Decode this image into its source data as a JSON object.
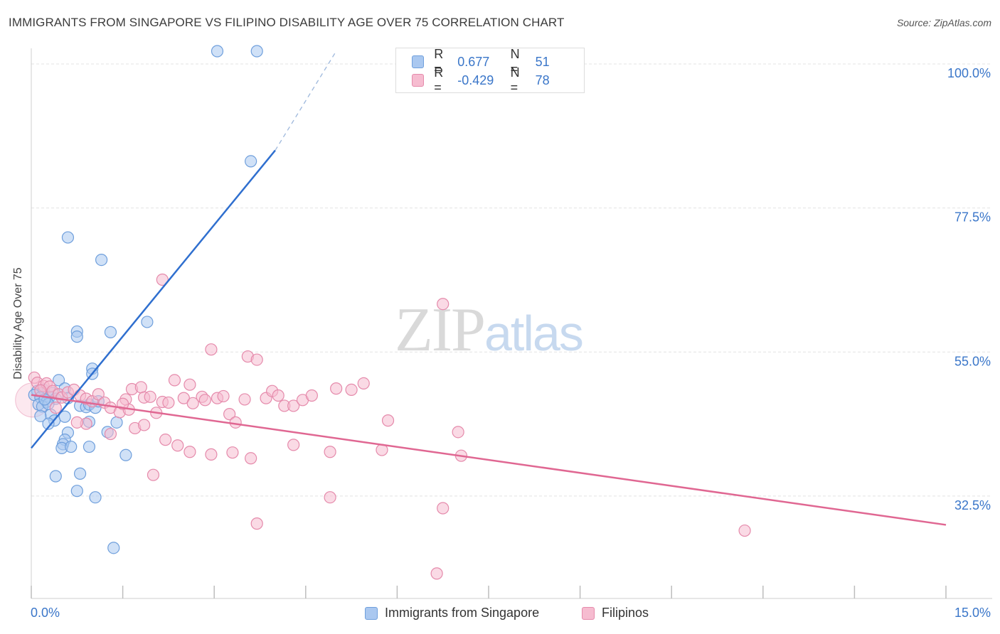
{
  "title": "IMMIGRANTS FROM SINGAPORE VS FILIPINO DISABILITY AGE OVER 75 CORRELATION CHART",
  "source": "Source: ZipAtlas.com",
  "watermark": {
    "part1": "ZIP",
    "part2": "atlas"
  },
  "legend": {
    "rows": [
      {
        "r_label": "R =",
        "r_value": "0.677",
        "n_label": "N =",
        "n_value": "51"
      },
      {
        "r_label": "R =",
        "r_value": "-0.429",
        "n_label": "N =",
        "n_value": "78"
      }
    ]
  },
  "bottom_legend": [
    "Immigrants from Singapore",
    "Filipinos"
  ],
  "colors": {
    "singapore_fill": "#aac8f0",
    "singapore_stroke": "#6f9fdc",
    "singapore_line": "#2f6fcf",
    "filipino_fill": "#f6bcd0",
    "filipino_stroke": "#e58aab",
    "filipino_line": "#e06792",
    "axis_label": "#3a76c9",
    "grid": "#e3e3e3"
  },
  "chart_data": {
    "type": "scatter",
    "title": "IMMIGRANTS FROM SINGAPORE VS FILIPINO DISABILITY AGE OVER 75 CORRELATION CHART",
    "xlabel": "",
    "ylabel": "Disability Age Over 75",
    "xlim": [
      0,
      15
    ],
    "ylim": [
      16.5,
      102
    ],
    "x_tick_labels": [
      "0.0%",
      "15.0%"
    ],
    "y_ticks": [
      32.5,
      55.0,
      77.5,
      100.0
    ],
    "y_tick_labels": [
      "32.5%",
      "55.0%",
      "77.5%",
      "100.0%"
    ],
    "grid": true,
    "legend_position": "top-center",
    "series": [
      {
        "name": "Immigrants from Singapore",
        "R": 0.677,
        "N": 51,
        "trend": {
          "x0": 0.0,
          "y0": 40.0,
          "x1": 4.0,
          "y1": 86.5,
          "dashed_to_x": 5.0,
          "dashed_to_y": 102.0
        },
        "points": [
          [
            3.05,
            102.0
          ],
          [
            3.7,
            102.0
          ],
          [
            3.6,
            84.8
          ],
          [
            0.6,
            72.9
          ],
          [
            1.15,
            69.4
          ],
          [
            1.9,
            59.7
          ],
          [
            0.75,
            58.2
          ],
          [
            0.75,
            57.4
          ],
          [
            1.3,
            58.1
          ],
          [
            1.0,
            52.4
          ],
          [
            1.0,
            51.6
          ],
          [
            0.45,
            50.6
          ],
          [
            0.55,
            49.3
          ],
          [
            0.1,
            48.9
          ],
          [
            0.2,
            49.1
          ],
          [
            0.35,
            48.6
          ],
          [
            0.05,
            48.3
          ],
          [
            0.15,
            47.9
          ],
          [
            0.3,
            48.0
          ],
          [
            0.4,
            47.7
          ],
          [
            0.6,
            47.8
          ],
          [
            0.25,
            47.2
          ],
          [
            0.12,
            46.8
          ],
          [
            0.18,
            46.5
          ],
          [
            0.28,
            46.9
          ],
          [
            0.8,
            46.6
          ],
          [
            0.9,
            46.4
          ],
          [
            0.95,
            46.8
          ],
          [
            1.05,
            46.3
          ],
          [
            1.1,
            47.3
          ],
          [
            0.32,
            45.2
          ],
          [
            0.38,
            44.3
          ],
          [
            0.55,
            44.9
          ],
          [
            0.28,
            43.8
          ],
          [
            0.6,
            42.4
          ],
          [
            0.95,
            44.1
          ],
          [
            1.25,
            42.5
          ],
          [
            1.4,
            44.0
          ],
          [
            0.55,
            41.3
          ],
          [
            0.52,
            40.6
          ],
          [
            0.5,
            40.0
          ],
          [
            0.65,
            40.2
          ],
          [
            0.95,
            40.2
          ],
          [
            1.55,
            38.9
          ],
          [
            0.4,
            35.6
          ],
          [
            0.8,
            36.0
          ],
          [
            0.75,
            33.3
          ],
          [
            1.05,
            32.3
          ],
          [
            1.35,
            24.4
          ],
          [
            0.15,
            45.0
          ],
          [
            0.22,
            47.6
          ]
        ]
      },
      {
        "name": "Filipinos",
        "R": -0.429,
        "N": 78,
        "trend": {
          "x0": 0.0,
          "y0": 48.3,
          "x1": 15.0,
          "y1": 28.0
        },
        "points": [
          [
            0.05,
            51.0
          ],
          [
            0.1,
            50.2
          ],
          [
            0.2,
            49.7
          ],
          [
            0.25,
            50.1
          ],
          [
            0.3,
            49.6
          ],
          [
            0.15,
            49.0
          ],
          [
            0.35,
            48.9
          ],
          [
            0.45,
            48.4
          ],
          [
            0.5,
            47.9
          ],
          [
            0.6,
            48.7
          ],
          [
            0.7,
            49.1
          ],
          [
            0.8,
            48.2
          ],
          [
            0.9,
            47.7
          ],
          [
            1.0,
            47.3
          ],
          [
            1.1,
            48.4
          ],
          [
            1.2,
            47.1
          ],
          [
            1.3,
            46.3
          ],
          [
            1.45,
            45.6
          ],
          [
            1.55,
            47.6
          ],
          [
            1.6,
            46.0
          ],
          [
            1.65,
            49.2
          ],
          [
            1.8,
            49.5
          ],
          [
            1.85,
            47.9
          ],
          [
            1.95,
            48.0
          ],
          [
            2.05,
            45.5
          ],
          [
            2.15,
            47.2
          ],
          [
            2.25,
            47.1
          ],
          [
            2.35,
            50.6
          ],
          [
            2.5,
            47.8
          ],
          [
            2.6,
            49.9
          ],
          [
            2.65,
            47.0
          ],
          [
            2.8,
            48.0
          ],
          [
            2.85,
            47.5
          ],
          [
            2.95,
            55.4
          ],
          [
            3.05,
            47.8
          ],
          [
            3.15,
            48.1
          ],
          [
            3.25,
            45.3
          ],
          [
            3.35,
            44.0
          ],
          [
            3.5,
            47.6
          ],
          [
            3.55,
            54.3
          ],
          [
            3.7,
            53.8
          ],
          [
            3.85,
            47.8
          ],
          [
            3.95,
            48.9
          ],
          [
            4.05,
            48.2
          ],
          [
            4.15,
            46.6
          ],
          [
            4.3,
            46.6
          ],
          [
            4.45,
            47.5
          ],
          [
            4.6,
            48.2
          ],
          [
            5.0,
            49.3
          ],
          [
            5.25,
            49.1
          ],
          [
            5.45,
            50.1
          ],
          [
            5.85,
            44.3
          ],
          [
            0.9,
            43.8
          ],
          [
            1.7,
            43.1
          ],
          [
            1.85,
            43.6
          ],
          [
            2.0,
            35.8
          ],
          [
            2.2,
            41.3
          ],
          [
            2.4,
            40.4
          ],
          [
            2.6,
            39.4
          ],
          [
            2.95,
            39.0
          ],
          [
            3.3,
            39.3
          ],
          [
            4.3,
            40.5
          ],
          [
            4.9,
            39.4
          ],
          [
            5.75,
            39.7
          ],
          [
            7.0,
            42.5
          ],
          [
            7.05,
            38.8
          ],
          [
            2.15,
            66.3
          ],
          [
            6.75,
            62.5
          ],
          [
            4.9,
            32.3
          ],
          [
            6.75,
            30.6
          ],
          [
            3.7,
            28.2
          ],
          [
            6.65,
            20.4
          ],
          [
            11.7,
            27.1
          ],
          [
            1.3,
            42.2
          ],
          [
            0.75,
            44.0
          ],
          [
            1.5,
            46.9
          ],
          [
            3.6,
            38.4
          ],
          [
            0.4,
            46.3
          ]
        ]
      }
    ]
  }
}
